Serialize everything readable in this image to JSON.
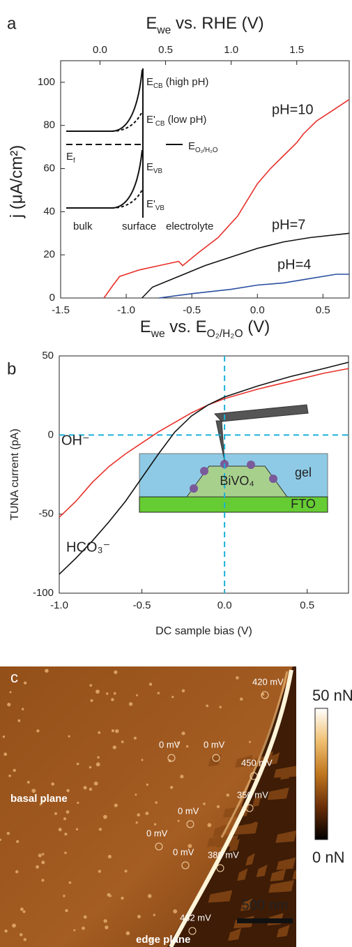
{
  "chart_data": [
    {
      "type": "line",
      "panel_label": "a",
      "x_label": [
        {
          "t": "E"
        },
        {
          "t": "we",
          "sub": true
        },
        {
          "t": " vs. E"
        },
        {
          "t": "O₂/H₂O",
          "sub": true
        },
        {
          "t": " (V)"
        }
      ],
      "x2_label": [
        {
          "t": "E"
        },
        {
          "t": "we",
          "sub": true
        },
        {
          "t": " vs. RHE (V)"
        }
      ],
      "y_label": "j (μA/cm²)",
      "xlim": [
        -1.5,
        0.7
      ],
      "xticks": [
        -1.5,
        {
          "value": -1,
          "label": "-1.0"
        },
        -0.5,
        {
          "value": 0,
          "label": "0.0"
        },
        0.5
      ],
      "x2lim": [
        -0.3,
        1.9
      ],
      "x2ticks": [
        {
          "value": 0,
          "label": "0.0"
        },
        0.5,
        {
          "value": 1,
          "label": "1.0"
        },
        1.5
      ],
      "ylim": [
        0,
        110
      ],
      "yticks": [
        0,
        20,
        40,
        60,
        80,
        100
      ],
      "series": [
        {
          "name": "pH=10",
          "color": "#e8302a",
          "x": [
            -1.17,
            -1.1,
            -1.05,
            -0.9,
            -0.75,
            -0.6,
            -0.57,
            -0.53,
            -0.45,
            -0.3,
            -0.15,
            0,
            0.1,
            0.2,
            0.3,
            0.35,
            0.45,
            0.55,
            0.7
          ],
          "values": [
            0,
            6,
            10,
            13,
            15,
            17,
            15,
            17,
            21,
            28,
            38,
            53,
            60,
            66,
            72,
            76,
            82,
            86,
            92
          ]
        },
        {
          "name": "pH=7",
          "color": "#111111",
          "x": [
            -0.88,
            -0.8,
            -0.6,
            -0.4,
            -0.2,
            0,
            0.2,
            0.4,
            0.7
          ],
          "values": [
            0,
            5,
            10,
            15,
            19,
            23,
            26,
            28,
            30
          ]
        },
        {
          "name": "pH=4",
          "color": "#2b4fa0",
          "x": [
            -0.75,
            -0.5,
            -0.2,
            0,
            0.2,
            0.4,
            0.6,
            0.7
          ],
          "values": [
            0,
            2,
            4,
            6,
            7,
            9,
            11,
            11
          ]
        }
      ],
      "inset_labels": [
        [
          {
            "t": "E"
          },
          {
            "t": "CB",
            "sub": true
          },
          {
            "t": " (high pH)"
          }
        ],
        [
          {
            "t": "E'"
          },
          {
            "t": "CB",
            "sub": true
          },
          {
            "t": " (low pH)"
          }
        ],
        [
          {
            "t": "E"
          },
          {
            "t": "f",
            "sub": true
          }
        ],
        [
          {
            "t": "E"
          },
          {
            "t": "O₂/H₂O",
            "sub": true
          }
        ],
        [
          {
            "t": "E"
          },
          {
            "t": "VB",
            "sub": true
          }
        ],
        [
          {
            "t": "E'"
          },
          {
            "t": "VB",
            "sub": true
          }
        ],
        [
          {
            "t": "bulk"
          }
        ],
        [
          {
            "t": "surface"
          }
        ],
        [
          {
            "t": "electrolyte"
          }
        ]
      ]
    },
    {
      "type": "line",
      "panel_label": "b",
      "x_label": "DC sample bias (V)",
      "y_label": "TUNA current (pA)",
      "xlim": [
        -1,
        0.75
      ],
      "xticks": [
        {
          "value": -1,
          "label": "-1.0"
        },
        -0.5,
        {
          "value": 0,
          "label": "0.0"
        },
        0.5
      ],
      "ylim": [
        -100,
        50
      ],
      "yticks": [
        -100,
        -50,
        0,
        50
      ],
      "guides": {
        "x": 0,
        "y": 0,
        "color": "#1ab0d8"
      },
      "series": [
        {
          "name": "OH⁻",
          "color": "#e8302a",
          "x": [
            -1,
            -0.9,
            -0.8,
            -0.7,
            -0.6,
            -0.5,
            -0.4,
            -0.3,
            -0.2,
            -0.1,
            0,
            0.2,
            0.4,
            0.6,
            0.75
          ],
          "values": [
            -52,
            -42,
            -30,
            -20,
            -12,
            -5,
            2,
            8,
            14,
            19,
            23,
            29,
            34,
            39,
            42
          ]
        },
        {
          "name": "HCO₃⁻",
          "color": "#111111",
          "x": [
            -1,
            -0.9,
            -0.8,
            -0.7,
            -0.6,
            -0.5,
            -0.4,
            -0.3,
            -0.2,
            -0.1,
            0,
            0.2,
            0.4,
            0.6,
            0.75
          ],
          "values": [
            -88,
            -78,
            -67,
            -55,
            -42,
            -27,
            -12,
            2,
            12,
            19,
            24,
            31,
            37,
            42,
            46
          ]
        }
      ],
      "inset_labels": [
        "gel",
        "BiVO₄",
        "FTO"
      ]
    }
  ],
  "image_panel": {
    "panel_label": "c",
    "colorbar": {
      "max": "50 nN",
      "min": "0 nN"
    },
    "annotations": [
      "420 mV",
      "0 mV",
      "0 mV",
      "450 mV",
      "350 mV",
      "0 mV",
      "0 mV",
      "0 mV",
      "380 mV",
      "432 mV"
    ],
    "regions": [
      "basal plane",
      "edge plane"
    ],
    "scale_bar": "500 nm"
  }
}
